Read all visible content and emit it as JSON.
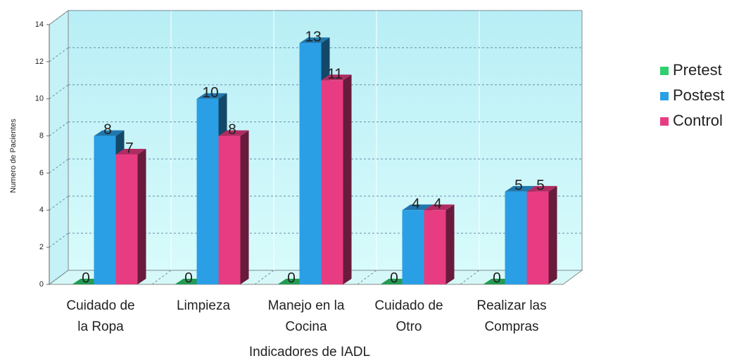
{
  "chart_data": {
    "type": "bar3d",
    "x_label": "Indicadores de IADL",
    "y_label": "Numero de Pacientes",
    "categories": [
      "Cuidado de la Ropa",
      "Limpieza",
      "Manejo en la Cocina",
      "Cuidado de Otro",
      "Realizar las Compras"
    ],
    "series": [
      {
        "name": "Pretest",
        "color": "#2fcf6f",
        "values": [
          0,
          0,
          0,
          0,
          0
        ]
      },
      {
        "name": "Postest",
        "color": "#2a9fe6",
        "values": [
          8,
          10,
          13,
          4,
          5
        ]
      },
      {
        "name": "Control",
        "color": "#e83c82",
        "values": [
          7,
          8,
          11,
          4,
          5
        ]
      }
    ],
    "ylim": [
      0,
      14
    ],
    "yticks": [
      0,
      2,
      4,
      6,
      8,
      10,
      12,
      14
    ],
    "grid": true,
    "legend": "right"
  }
}
